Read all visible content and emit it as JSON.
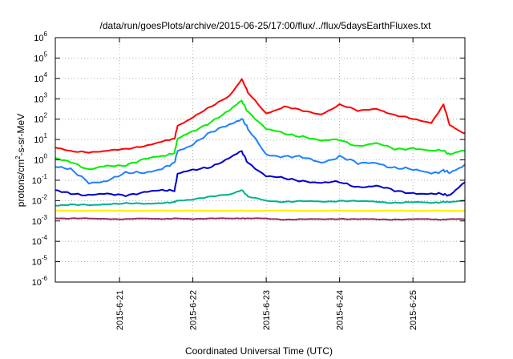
{
  "chart_data": {
    "type": "line",
    "title": "/data/run/goesPlots/archive/2015-06-25/17:00/flux/../flux/5daysEarthFluxes.txt",
    "xlabel": "Coordinated Universal Time (UTC)",
    "ylabel": "protons/cm²-s-sr-MeV",
    "ylabel_parts": {
      "base": "protons/cm",
      "sup": "2",
      "rest": "-s-sr-MeV"
    },
    "y_scale": "log",
    "ylim_exponents": [
      -6,
      6
    ],
    "y_ticks": [
      {
        "base": "10",
        "exp": "-6"
      },
      {
        "base": "10",
        "exp": "-5"
      },
      {
        "base": "10",
        "exp": "-4"
      },
      {
        "base": "10",
        "exp": "-3"
      },
      {
        "base": "10",
        "exp": "-2"
      },
      {
        "base": "10",
        "exp": "-1"
      },
      {
        "base": "10",
        "exp": "0"
      },
      {
        "base": "10",
        "exp": "1"
      },
      {
        "base": "10",
        "exp": "2"
      },
      {
        "base": "10",
        "exp": "3"
      },
      {
        "base": "10",
        "exp": "4"
      },
      {
        "base": "10",
        "exp": "5"
      },
      {
        "base": "10",
        "exp": "6"
      }
    ],
    "xlim": [
      "2015-06-20 03:00",
      "2015-06-25 17:00"
    ],
    "x_ticks": [
      "2015-6-21",
      "2015-6-22",
      "2015-6-23",
      "2015-6-24",
      "2015-6-25"
    ],
    "x_tick_values": [
      "2015-06-21 00:00",
      "2015-06-22 00:00",
      "2015-06-23 00:00",
      "2015-06-24 00:00",
      "2015-06-25 00:00"
    ],
    "grid": true,
    "x": [
      "2015-06-20 03:00",
      "2015-06-20 08:00",
      "2015-06-20 14:00",
      "2015-06-20 20:00",
      "2015-06-21 02:00",
      "2015-06-21 08:00",
      "2015-06-21 14:00",
      "2015-06-21 18:00",
      "2015-06-21 19:00",
      "2015-06-22 00:00",
      "2015-06-22 06:00",
      "2015-06-22 12:00",
      "2015-06-22 16:00",
      "2015-06-22 18:00",
      "2015-06-23 00:00",
      "2015-06-23 06:00",
      "2015-06-23 12:00",
      "2015-06-23 18:00",
      "2015-06-24 00:00",
      "2015-06-24 06:00",
      "2015-06-24 12:00",
      "2015-06-24 18:00",
      "2015-06-25 00:00",
      "2015-06-25 06:00",
      "2015-06-25 10:00",
      "2015-06-25 12:00",
      "2015-06-25 17:00"
    ],
    "series": [
      {
        "color": "#ff0000",
        "values": [
          4.0,
          2.5,
          2.5,
          2.8,
          3.2,
          5.0,
          8.0,
          10.0,
          50.0,
          120.0,
          400.0,
          1500.0,
          9000.0,
          2000.0,
          200.0,
          400.0,
          250.0,
          180.0,
          500.0,
          250.0,
          350.0,
          150.0,
          100.0,
          70.0,
          500.0,
          50.0,
          20.0
        ]
      },
      {
        "color": "#00ee00",
        "values": [
          1.2,
          0.9,
          0.3,
          0.5,
          0.6,
          1.0,
          1.5,
          2.5,
          10.0,
          25.0,
          80.0,
          250.0,
          800.0,
          250.0,
          30.0,
          20.0,
          15.0,
          8.0,
          10.0,
          5.0,
          6.0,
          3.5,
          4.0,
          2.5,
          3.0,
          2.0,
          2.8
        ]
      },
      {
        "color": "#2080ff",
        "values": [
          0.5,
          0.3,
          0.08,
          0.1,
          0.2,
          0.25,
          0.4,
          0.6,
          3.0,
          6.0,
          20.0,
          60.0,
          110.0,
          30.0,
          2.0,
          1.5,
          1.2,
          0.8,
          1.5,
          0.6,
          0.8,
          0.4,
          0.3,
          0.25,
          0.3,
          0.2,
          0.6
        ]
      },
      {
        "color": "#0000cc",
        "values": [
          0.03,
          0.025,
          0.018,
          0.02,
          0.02,
          0.025,
          0.03,
          0.035,
          0.2,
          0.3,
          0.5,
          1.2,
          2.5,
          0.8,
          0.15,
          0.12,
          0.1,
          0.07,
          0.08,
          0.05,
          0.05,
          0.03,
          0.025,
          0.02,
          0.02,
          0.02,
          0.08
        ]
      },
      {
        "color": "#00b090",
        "values": [
          0.006,
          0.006,
          0.006,
          0.007,
          0.007,
          0.007,
          0.008,
          0.008,
          0.01,
          0.012,
          0.015,
          0.02,
          0.035,
          0.015,
          0.01,
          0.009,
          0.009,
          0.009,
          0.01,
          0.009,
          0.009,
          0.008,
          0.008,
          0.008,
          0.009,
          0.008,
          0.01
        ]
      },
      {
        "color": "#ffee00",
        "values": [
          0.0032,
          0.0032,
          0.0032,
          0.0032,
          0.0032,
          0.0032,
          0.0032,
          0.0032,
          0.0032,
          0.0032,
          0.0032,
          0.0032,
          0.0032,
          0.0032,
          0.0032,
          0.0032,
          0.0032,
          0.0032,
          0.0032,
          0.0032,
          0.0032,
          0.0032,
          0.0032,
          0.0032,
          0.0032,
          0.0032,
          0.0032
        ]
      },
      {
        "color": "#903060",
        "values": [
          0.0014,
          0.0013,
          0.0013,
          0.0013,
          0.0012,
          0.0013,
          0.0013,
          0.0013,
          0.0013,
          0.0013,
          0.0013,
          0.0013,
          0.0014,
          0.0013,
          0.0013,
          0.0012,
          0.0012,
          0.0012,
          0.0013,
          0.0012,
          0.0012,
          0.0012,
          0.0012,
          0.0012,
          0.0012,
          0.0012,
          0.0012
        ]
      }
    ]
  }
}
